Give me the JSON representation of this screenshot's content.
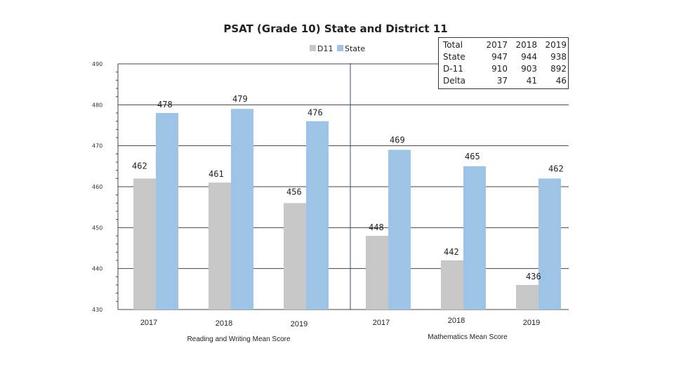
{
  "chart_data": {
    "type": "bar",
    "title": "PSAT (Grade 10) State and District 11",
    "legend": [
      "D11",
      "State"
    ],
    "legend_position": "top",
    "colors": {
      "D11": "#c8c8c8",
      "State": "#9dc3e6"
    },
    "ylim": [
      430,
      490
    ],
    "yticks": [
      "430",
      "440",
      "450",
      "460",
      "470",
      "480",
      "490"
    ],
    "grid": true,
    "groups": [
      {
        "label": "Reading and Writing Mean Score",
        "categories": [
          "2017",
          "2018",
          "2019"
        ],
        "series": [
          {
            "name": "D11",
            "values": [
              462,
              461,
              456
            ]
          },
          {
            "name": "State",
            "values": [
              478,
              479,
              476
            ]
          }
        ]
      },
      {
        "label": "Mathematics Mean Score",
        "categories": [
          "2017",
          "2018",
          "2019"
        ],
        "series": [
          {
            "name": "D11",
            "values": [
              448,
              442,
              436
            ]
          },
          {
            "name": "State",
            "values": [
              469,
              465,
              462
            ]
          }
        ]
      }
    ]
  },
  "totals_table": {
    "header": [
      "Total",
      "2017",
      "2018",
      "2019"
    ],
    "rows": [
      [
        "State",
        "947",
        "944",
        "938"
      ],
      [
        "D-11",
        "910",
        "903",
        "892"
      ],
      [
        "Delta",
        "37",
        "41",
        "46"
      ]
    ]
  }
}
